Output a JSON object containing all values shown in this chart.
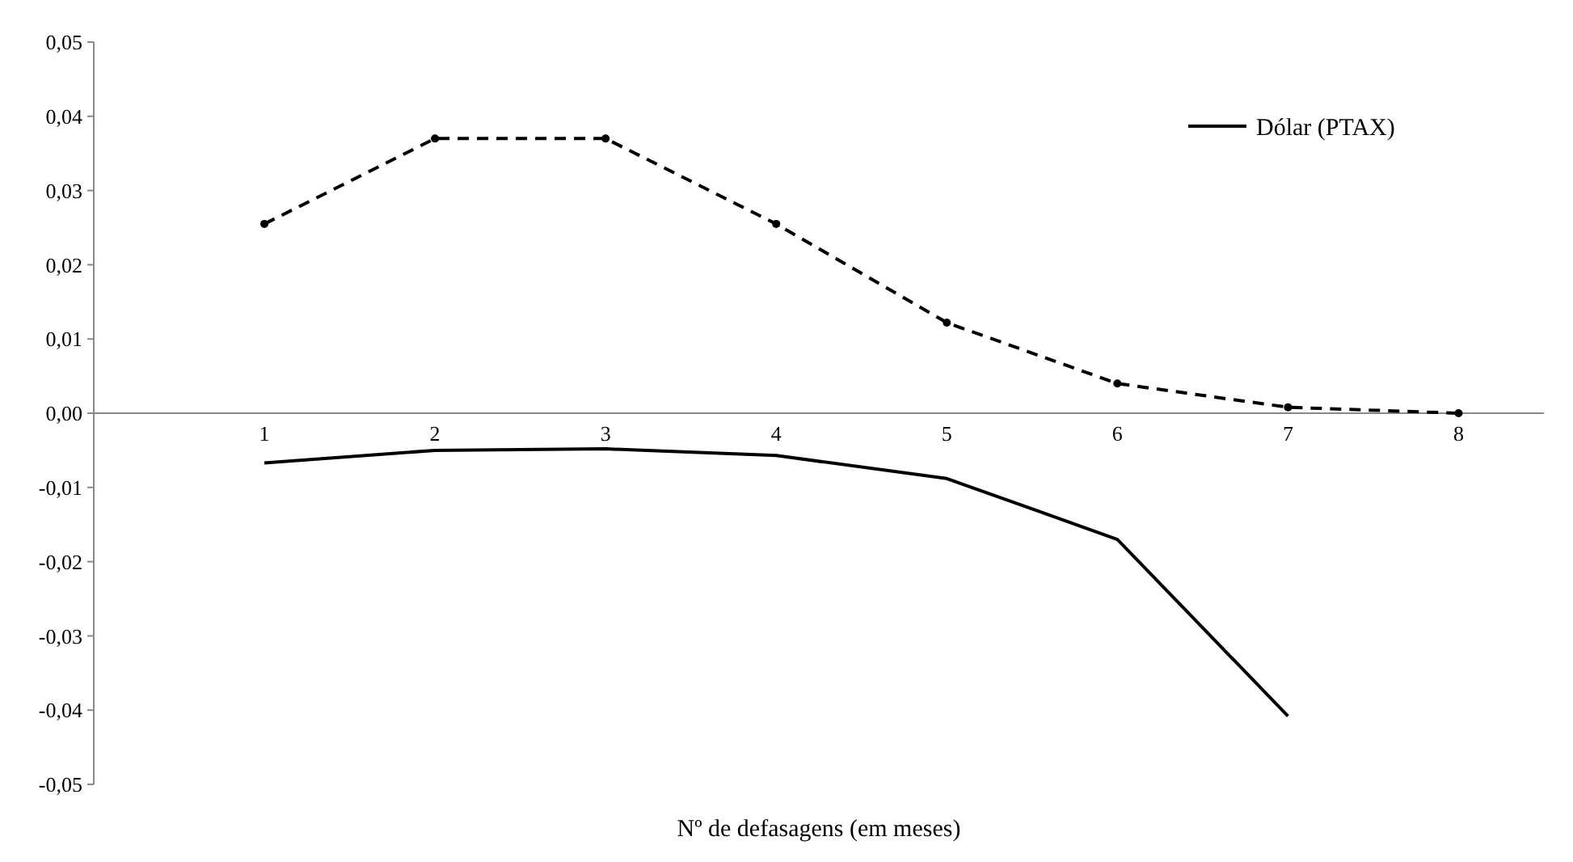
{
  "chart_data": {
    "type": "line",
    "xlabel": "Nº de defasagens (em meses)",
    "categories": [
      "1",
      "2",
      "3",
      "4",
      "5",
      "6",
      "7",
      "8"
    ],
    "series": [
      {
        "color": "#000000",
        "line_style": "dashed",
        "marker": "circle",
        "values": [
          0.0255,
          0.037,
          0.037,
          0.0255,
          0.0122,
          0.004,
          0.0008,
          0
        ]
      },
      {
        "name": "Dólar (PTAX)",
        "color": "#000000",
        "line_style": "solid",
        "marker": "none",
        "values": [
          -0.0067,
          -0.005,
          -0.0048,
          -0.0057,
          -0.0088,
          -0.017,
          -0.0408,
          null
        ]
      }
    ],
    "ylim": [
      -0.05,
      0.05
    ],
    "yticks": [
      {
        "value": -0.05,
        "label": "-0,05"
      },
      {
        "value": -0.04,
        "label": "-0,04"
      },
      {
        "value": -0.03,
        "label": "-0,03"
      },
      {
        "value": -0.02,
        "label": "-0,02"
      },
      {
        "value": -0.01,
        "label": "-0,01"
      },
      {
        "value": 0,
        "label": "0,00"
      },
      {
        "value": 0.01,
        "label": "0,01"
      },
      {
        "value": 0.02,
        "label": "0,02"
      },
      {
        "value": 0.03,
        "label": "0,03"
      },
      {
        "value": 0.04,
        "label": "0,04"
      },
      {
        "value": 0.05,
        "label": "0,05"
      }
    ],
    "grid": false,
    "legend": "top right"
  }
}
